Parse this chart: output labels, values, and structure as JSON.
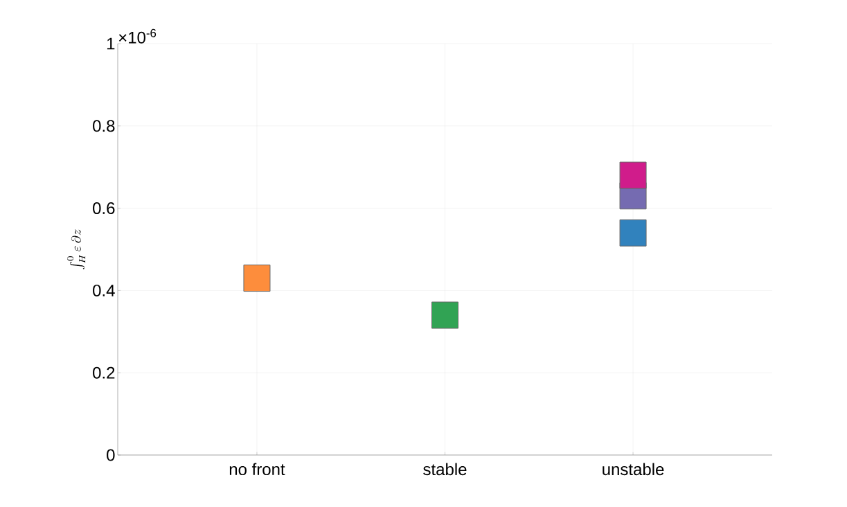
{
  "chart_data": {
    "type": "scatter",
    "ylabel": "\\int_H^0 \\varepsilon\\,\\partial z",
    "categories": [
      "no front",
      "stable",
      "unstable"
    ],
    "series": [
      {
        "color": "#fd8d3c",
        "values": [
          0.43,
          null,
          null
        ]
      },
      {
        "color": "#31a354",
        "values": [
          null,
          0.34,
          null
        ]
      },
      {
        "color": "#3182bd",
        "values": [
          null,
          null,
          0.54
        ]
      },
      {
        "color": "#756bb1",
        "values": [
          null,
          null,
          0.63
        ]
      },
      {
        "color": "#d01c8b",
        "values": [
          null,
          null,
          0.68
        ]
      }
    ],
    "ylim": [
      0,
      1
    ],
    "yticks": [
      0,
      0.2,
      0.4,
      0.6,
      0.8,
      1
    ],
    "annotations": [
      "×10$^{-6}$"
    ],
    "grid": true,
    "marker": "square"
  }
}
